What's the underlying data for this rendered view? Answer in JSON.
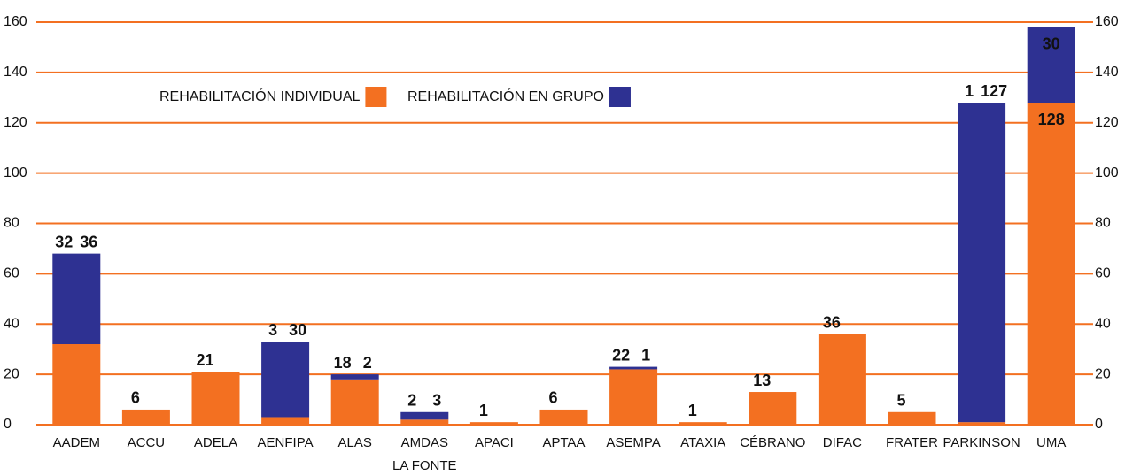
{
  "chart_data": {
    "type": "bar",
    "stacked": true,
    "categories": [
      "AADEM",
      "ACCU",
      "ADELA",
      "AENFIPA",
      "ALAS",
      "AMDAS\nLA FONTE",
      "APACI",
      "APTAA",
      "ASEMPA",
      "ATAXIA",
      "CÉBRANO",
      "DIFAC",
      "FRATER",
      "PARKINSON",
      "UMA"
    ],
    "series": [
      {
        "name": "REHABILITACIÓN INDIVIDUAL",
        "color": "#f37021",
        "values": [
          32,
          6,
          21,
          3,
          18,
          2,
          1,
          6,
          22,
          1,
          13,
          36,
          5,
          1,
          128
        ]
      },
      {
        "name": "REHABILITACIÓN EN GRUPO",
        "color": "#2e3192",
        "values": [
          36,
          null,
          null,
          30,
          2,
          3,
          null,
          null,
          1,
          null,
          null,
          null,
          null,
          127,
          30
        ]
      }
    ],
    "ylim": [
      0,
      160
    ],
    "yticks": [
      0,
      20,
      40,
      60,
      80,
      100,
      120,
      140,
      160
    ],
    "grid": true,
    "grid_color": "#f37021"
  }
}
